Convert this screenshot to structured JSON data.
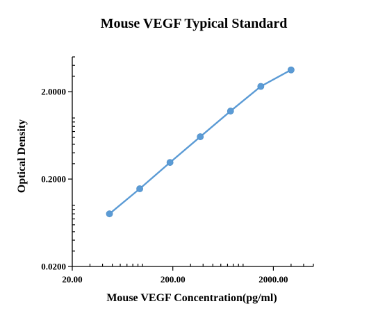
{
  "chart_data": {
    "type": "scatter",
    "title": "Mouse VEGF Typical Standard",
    "xlabel": "Mouse VEGF Concentration(pg/ml)",
    "ylabel": "Optical Density",
    "x_scale": "log",
    "y_scale": "log",
    "xlim": [
      20,
      5000
    ],
    "ylim": [
      0.02,
      5
    ],
    "x_ticks": [
      20,
      200,
      2000
    ],
    "x_tick_labels": [
      "20.00",
      "200.00",
      "2000.00"
    ],
    "y_ticks": [
      0.02,
      0.2,
      2
    ],
    "y_tick_labels": [
      "0.0200",
      "0.2000",
      "2.0000"
    ],
    "grid": false,
    "color": "#5b9bd5",
    "series": [
      {
        "x": [
          46.88,
          93.75,
          187.5,
          375,
          750,
          1500,
          3000
        ],
        "y": [
          0.08,
          0.155,
          0.31,
          0.61,
          1.2,
          2.3,
          3.55
        ]
      }
    ]
  }
}
